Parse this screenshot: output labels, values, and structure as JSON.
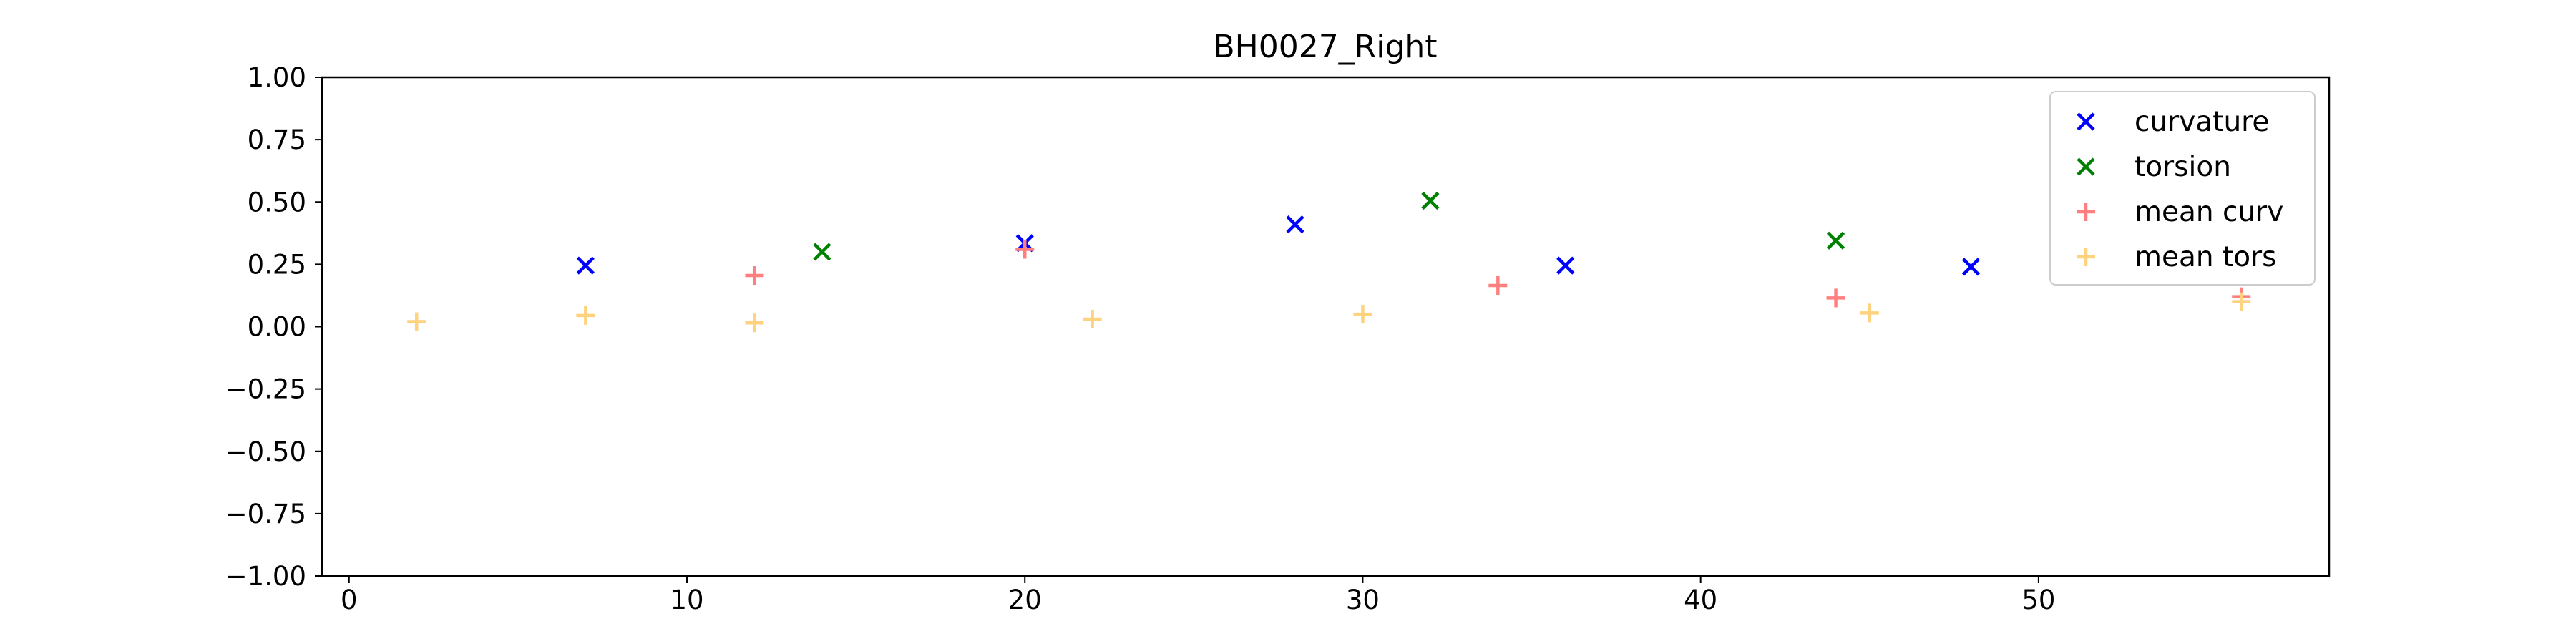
{
  "chart_data": {
    "type": "scatter",
    "title": "BH0027_Right",
    "xlabel": "",
    "ylabel": "",
    "xlim": [
      -0.8,
      58.6
    ],
    "ylim": [
      -1.0,
      1.0
    ],
    "xticks": [
      0,
      10,
      20,
      30,
      40,
      50
    ],
    "xtick_labels": [
      "0",
      "10",
      "20",
      "30",
      "40",
      "50"
    ],
    "yticks": [
      1.0,
      0.75,
      0.5,
      0.25,
      0.0,
      -0.25,
      -0.5,
      -0.75,
      -1.0
    ],
    "ytick_labels": [
      "1.00",
      "0.75",
      "0.50",
      "0.25",
      "0.00",
      "−0.25",
      "−0.50",
      "−0.75",
      "−1.00"
    ],
    "grid": false,
    "legend_position": "top-right",
    "series": [
      {
        "name": "curvature",
        "marker": "x",
        "color": "#0000ff",
        "x": [
          7,
          20,
          28,
          36,
          48
        ],
        "y": [
          0.245,
          0.335,
          0.41,
          0.245,
          0.24
        ]
      },
      {
        "name": "torsion",
        "marker": "x",
        "color": "#008000",
        "x": [
          14,
          32,
          44
        ],
        "y": [
          0.3,
          0.505,
          0.345
        ]
      },
      {
        "name": "mean curv",
        "marker": "+",
        "color": "#ff7f7f",
        "x": [
          12,
          20,
          34,
          44,
          56
        ],
        "y": [
          0.205,
          0.31,
          0.165,
          0.115,
          0.12
        ]
      },
      {
        "name": "mean tors",
        "marker": "+",
        "color": "#ffd27f",
        "x": [
          2,
          7,
          12,
          22,
          30,
          45,
          56
        ],
        "y": [
          0.02,
          0.045,
          0.015,
          0.03,
          0.05,
          0.055,
          0.1
        ]
      }
    ]
  }
}
